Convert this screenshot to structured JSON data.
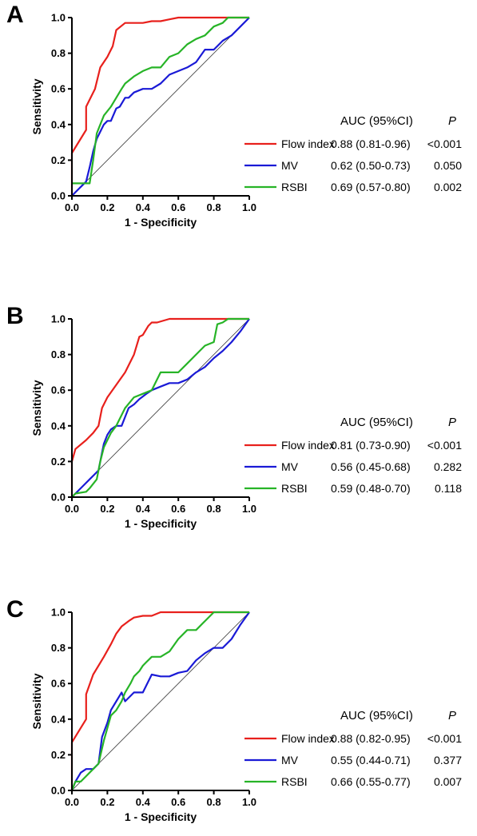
{
  "axes": {
    "xlabel": "1 - Specificity",
    "ylabel": "Sensitivity",
    "ticks": [
      "0.0",
      "0.2",
      "0.4",
      "0.6",
      "0.8",
      "1.0"
    ]
  },
  "table_header": {
    "auc": "AUC (95%CI)",
    "p": "P"
  },
  "colors": {
    "Flow index": "#e8201c",
    "MV": "#1a1ad6",
    "RSBI": "#27b427",
    "diagonal": "#333333"
  },
  "chart_data": [
    {
      "type": "line",
      "panel_label": "A",
      "xlabel": "1 - Specificity",
      "ylabel": "Sensitivity",
      "xlim": [
        0,
        1
      ],
      "ylim": [
        0,
        1
      ],
      "reference_line": true,
      "series": [
        {
          "name": "Flow index",
          "auc": "0.88 (0.81-0.96)",
          "p": "<0.001",
          "x": [
            0,
            0,
            0.08,
            0.08,
            0.13,
            0.16,
            0.2,
            0.23,
            0.25,
            0.3,
            0.35,
            0.4,
            0.45,
            0.5,
            0.55,
            0.6,
            0.7,
            0.8,
            0.9,
            1.0
          ],
          "y": [
            0,
            0.24,
            0.37,
            0.5,
            0.6,
            0.72,
            0.78,
            0.84,
            0.93,
            0.97,
            0.97,
            0.97,
            0.98,
            0.98,
            0.99,
            1.0,
            1.0,
            1.0,
            1.0,
            1.0
          ]
        },
        {
          "name": "MV",
          "auc": "0.62 (0.50-0.73)",
          "p": "0.050",
          "x": [
            0,
            0.02,
            0.05,
            0.08,
            0.1,
            0.12,
            0.14,
            0.16,
            0.18,
            0.2,
            0.22,
            0.25,
            0.27,
            0.3,
            0.32,
            0.35,
            0.4,
            0.45,
            0.5,
            0.55,
            0.6,
            0.65,
            0.7,
            0.75,
            0.8,
            0.85,
            0.9,
            0.95,
            1.0
          ],
          "y": [
            0,
            0.02,
            0.05,
            0.08,
            0.16,
            0.25,
            0.32,
            0.36,
            0.4,
            0.42,
            0.42,
            0.49,
            0.5,
            0.55,
            0.55,
            0.58,
            0.6,
            0.6,
            0.63,
            0.68,
            0.7,
            0.72,
            0.75,
            0.82,
            0.82,
            0.87,
            0.9,
            0.95,
            1.0
          ]
        },
        {
          "name": "RSBI",
          "auc": "0.69 (0.57-0.80)",
          "p": "0.002",
          "x": [
            0,
            0.05,
            0.1,
            0.12,
            0.14,
            0.16,
            0.18,
            0.22,
            0.25,
            0.28,
            0.3,
            0.35,
            0.4,
            0.45,
            0.5,
            0.55,
            0.6,
            0.65,
            0.7,
            0.75,
            0.8,
            0.85,
            0.88,
            0.9,
            1.0
          ],
          "y": [
            0.07,
            0.07,
            0.07,
            0.2,
            0.35,
            0.4,
            0.45,
            0.5,
            0.55,
            0.6,
            0.63,
            0.67,
            0.7,
            0.72,
            0.72,
            0.78,
            0.8,
            0.85,
            0.88,
            0.9,
            0.95,
            0.97,
            1.0,
            1.0,
            1.0
          ]
        }
      ]
    },
    {
      "type": "line",
      "panel_label": "B",
      "xlabel": "1 - Specificity",
      "ylabel": "Sensitivity",
      "xlim": [
        0,
        1
      ],
      "ylim": [
        0,
        1
      ],
      "reference_line": true,
      "series": [
        {
          "name": "Flow index",
          "auc": "0.81 (0.73-0.90)",
          "p": "<0.001",
          "x": [
            0,
            0,
            0.02,
            0.08,
            0.12,
            0.15,
            0.17,
            0.2,
            0.25,
            0.3,
            0.35,
            0.38,
            0.4,
            0.43,
            0.45,
            0.48,
            0.55,
            0.6,
            0.7,
            0.8,
            0.9,
            1.0
          ],
          "y": [
            0,
            0.2,
            0.27,
            0.32,
            0.36,
            0.4,
            0.5,
            0.56,
            0.63,
            0.7,
            0.8,
            0.9,
            0.91,
            0.96,
            0.98,
            0.98,
            1.0,
            1.0,
            1.0,
            1.0,
            1.0,
            1.0
          ]
        },
        {
          "name": "MV",
          "auc": "0.56 (0.45-0.68)",
          "p": "0.282",
          "x": [
            0,
            0.02,
            0.06,
            0.1,
            0.13,
            0.15,
            0.17,
            0.18,
            0.2,
            0.22,
            0.25,
            0.28,
            0.3,
            0.32,
            0.35,
            0.38,
            0.42,
            0.45,
            0.5,
            0.55,
            0.6,
            0.65,
            0.7,
            0.75,
            0.8,
            0.85,
            0.9,
            0.95,
            1.0
          ],
          "y": [
            0,
            0.02,
            0.06,
            0.1,
            0.13,
            0.15,
            0.25,
            0.3,
            0.35,
            0.38,
            0.4,
            0.4,
            0.45,
            0.5,
            0.52,
            0.55,
            0.58,
            0.6,
            0.62,
            0.64,
            0.64,
            0.66,
            0.7,
            0.73,
            0.78,
            0.82,
            0.87,
            0.93,
            1.0
          ]
        },
        {
          "name": "RSBI",
          "auc": "0.59 (0.48-0.70)",
          "p": "0.118",
          "x": [
            0,
            0.02,
            0.08,
            0.1,
            0.14,
            0.16,
            0.18,
            0.2,
            0.22,
            0.25,
            0.3,
            0.35,
            0.4,
            0.45,
            0.5,
            0.55,
            0.6,
            0.65,
            0.7,
            0.75,
            0.8,
            0.82,
            0.85,
            0.88,
            0.9,
            1.0
          ],
          "y": [
            0,
            0.02,
            0.03,
            0.05,
            0.1,
            0.2,
            0.28,
            0.32,
            0.36,
            0.4,
            0.5,
            0.56,
            0.58,
            0.6,
            0.7,
            0.7,
            0.7,
            0.75,
            0.8,
            0.85,
            0.87,
            0.97,
            0.98,
            1.0,
            1.0,
            1.0
          ]
        }
      ]
    },
    {
      "type": "line",
      "panel_label": "C",
      "xlabel": "1 - Specificity",
      "ylabel": "Sensitivity",
      "xlim": [
        0,
        1
      ],
      "ylim": [
        0,
        1
      ],
      "reference_line": true,
      "series": [
        {
          "name": "Flow index",
          "auc": "0.88 (0.82-0.95)",
          "p": "<0.001",
          "x": [
            0,
            0,
            0.08,
            0.08,
            0.12,
            0.18,
            0.22,
            0.25,
            0.28,
            0.32,
            0.35,
            0.4,
            0.45,
            0.5,
            0.55,
            0.6,
            0.7,
            0.8,
            0.9,
            1.0
          ],
          "y": [
            0,
            0.27,
            0.4,
            0.54,
            0.65,
            0.75,
            0.82,
            0.88,
            0.92,
            0.95,
            0.97,
            0.98,
            0.98,
            1.0,
            1.0,
            1.0,
            1.0,
            1.0,
            1.0,
            1.0
          ]
        },
        {
          "name": "MV",
          "auc": "0.55 (0.44-0.71)",
          "p": "0.377",
          "x": [
            0,
            0.02,
            0.05,
            0.08,
            0.12,
            0.15,
            0.17,
            0.2,
            0.22,
            0.25,
            0.28,
            0.3,
            0.35,
            0.4,
            0.45,
            0.5,
            0.55,
            0.6,
            0.65,
            0.7,
            0.75,
            0.8,
            0.85,
            0.9,
            0.95,
            1.0
          ],
          "y": [
            0,
            0.05,
            0.1,
            0.12,
            0.12,
            0.15,
            0.3,
            0.38,
            0.45,
            0.5,
            0.55,
            0.5,
            0.55,
            0.55,
            0.65,
            0.64,
            0.64,
            0.66,
            0.67,
            0.73,
            0.77,
            0.8,
            0.8,
            0.85,
            0.93,
            1.0
          ]
        },
        {
          "name": "RSBI",
          "auc": "0.66 (0.55-0.77)",
          "p": "0.007",
          "x": [
            0,
            0.02,
            0.05,
            0.1,
            0.15,
            0.18,
            0.2,
            0.22,
            0.25,
            0.28,
            0.3,
            0.33,
            0.35,
            0.38,
            0.4,
            0.42,
            0.45,
            0.5,
            0.55,
            0.6,
            0.65,
            0.7,
            0.75,
            0.8,
            0.9,
            1.0
          ],
          "y": [
            0,
            0.05,
            0.05,
            0.1,
            0.15,
            0.28,
            0.35,
            0.42,
            0.45,
            0.5,
            0.55,
            0.6,
            0.64,
            0.67,
            0.7,
            0.72,
            0.75,
            0.75,
            0.78,
            0.85,
            0.9,
            0.9,
            0.95,
            1.0,
            1.0,
            1.0
          ]
        }
      ]
    }
  ]
}
